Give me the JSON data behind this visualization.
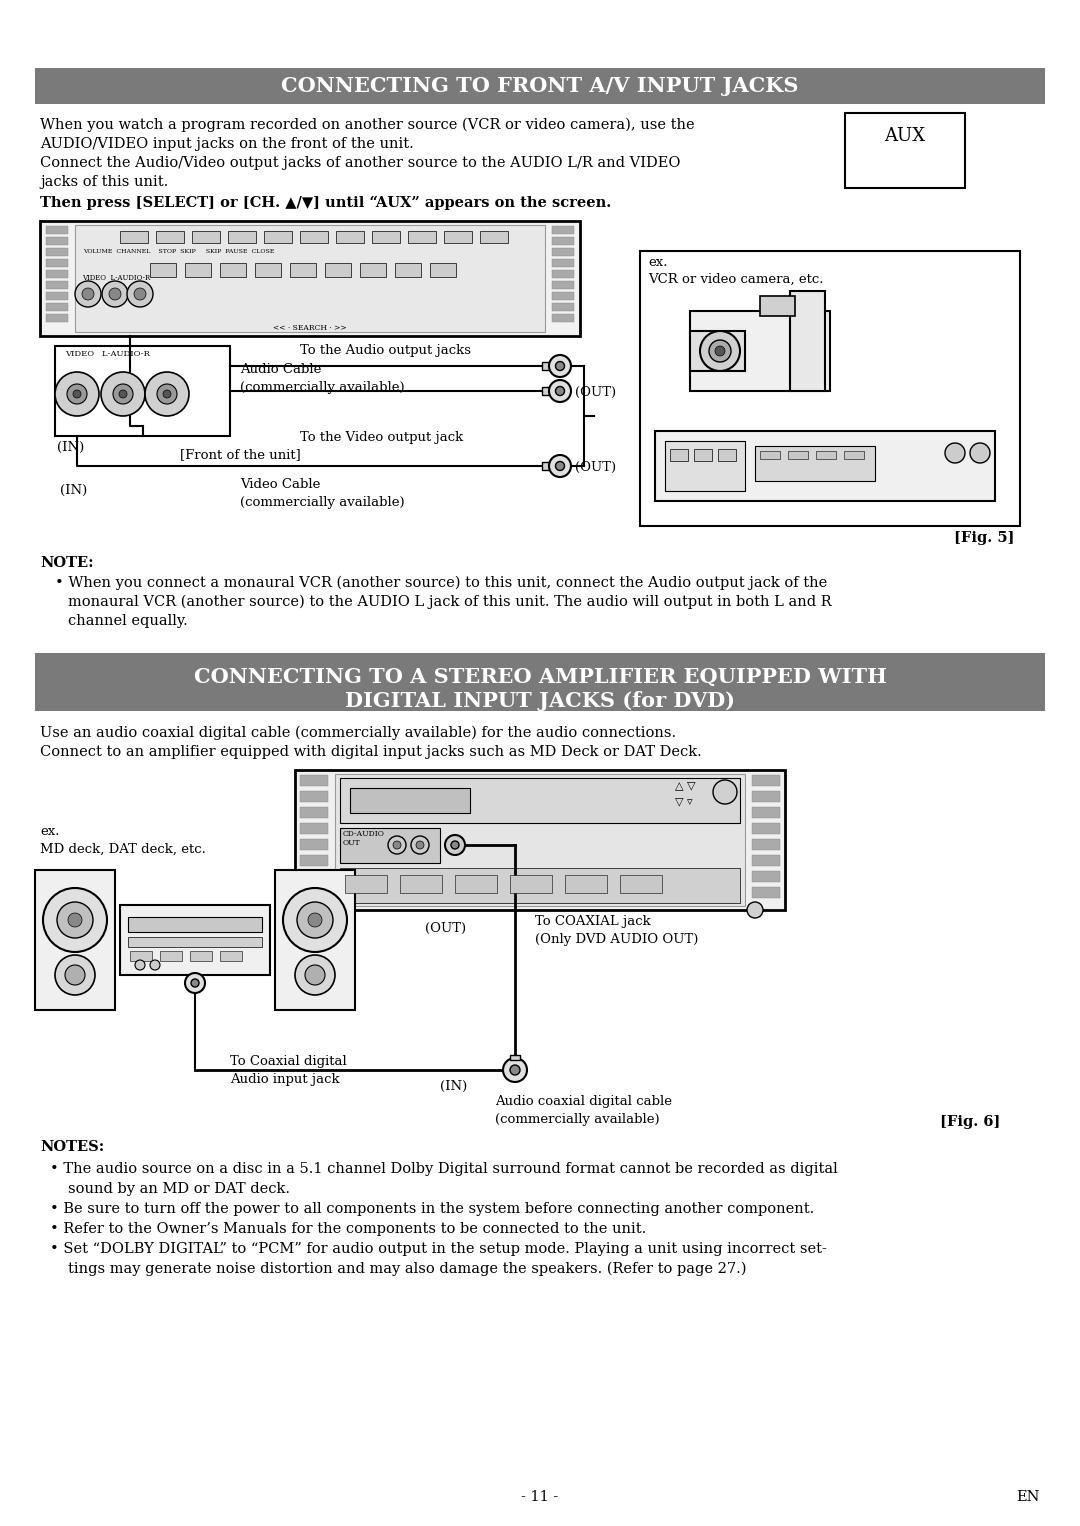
{
  "bg_color": "#ffffff",
  "header1_bg": "#7a7a7a",
  "header1_text": "CONNECTING TO FRONT A/V INPUT JACKS",
  "header2_bg": "#7a7a7a",
  "header2_line1": "CONNECTING TO A STEREO AMPLIFIER EQUIPPED WITH",
  "header2_line2": "DIGITAL INPUT JACKS (for DVD)",
  "header_text_color": "#ffffff",
  "body_text_color": "#000000",
  "aux_label": "AUX",
  "fig5_label": "[Fig. 5]",
  "fig6_label": "[Fig. 6]",
  "note1_title": "NOTE:",
  "notes2_title": "NOTES:",
  "page_number": "- 11 -",
  "page_en": "EN",
  "body1_lines": [
    "When you watch a program recorded on another source (VCR or video camera), use the",
    "AUDIO/VIDEO input jacks on the front of the unit.",
    "Connect the Audio/Video output jacks of another source to the AUDIO L/R and VIDEO",
    "jacks of this unit."
  ],
  "body1_bold": "Then press [SELECT] or [CH. ▲/▼] until “AUX” appears on the screen.",
  "note1_bullet": "When you connect a monaural VCR (another source) to this unit, connect the Audio output jack of the",
  "note1_cont1": "monaural VCR (another source) to the AUDIO L jack of this unit. The audio will output in both L and R",
  "note1_cont2": "channel equally.",
  "body2_line1": "Use an audio coaxial digital cable (commercially available) for the audio connections.",
  "body2_line2": "Connect to an amplifier equipped with digital input jacks such as MD Deck or DAT Deck.",
  "notes2_b1": "The audio source on a disc in a 5.1 channel Dolby Digital surround format cannot be recorded as digital",
  "notes2_b1c": "sound by an MD or DAT deck.",
  "notes2_b2": "Be sure to turn off the power to all components in the system before connecting another component.",
  "notes2_b3": "Refer to the Owner’s Manuals for the components to be connected to the unit.",
  "notes2_b4": "Set “DOLBY DIGITAL” to “PCM” for audio output in the setup mode. Playing a unit using incorrect set-",
  "notes2_b4c": "tings may generate noise distortion and may also damage the speakers. (Refer to page 27.)",
  "diag1": {
    "tv_label_in": "(IN)",
    "tv_label_front": "[Front of the unit]",
    "audio_label_to": "To the Audio output jacks",
    "audio_cable1": "Audio Cable",
    "audio_cable2": "(commercially available)",
    "audio_out": "(OUT)",
    "video_label_to": "To the Video output jack",
    "video_cable1": "Video Cable",
    "video_cable2": "(commercially available)",
    "video_in": "(IN)",
    "video_out": "(OUT)",
    "ex_line1": "ex.",
    "ex_line2": "VCR or video camera, etc."
  },
  "diag2": {
    "out_label": "(OUT)",
    "coaxial_jack1": "To COAXIAL jack",
    "coaxial_jack2": "(Only DVD AUDIO OUT)",
    "coaxial_dig1": "To Coaxial digital",
    "coaxial_dig2": "Audio input jack",
    "in_label": "(IN)",
    "cable1": "Audio coaxial digital cable",
    "cable2": "(commercially available)",
    "ex_line1": "ex.",
    "ex_line2": "MD deck, DAT deck, etc."
  }
}
